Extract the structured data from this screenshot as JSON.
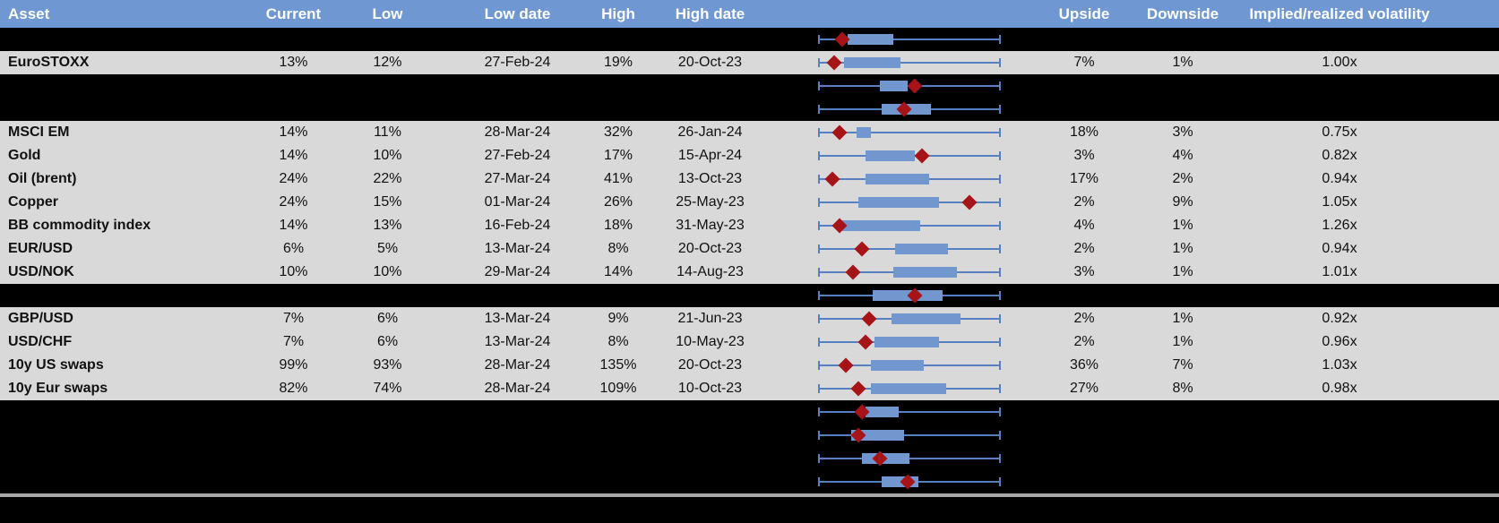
{
  "colors": {
    "header_bg": "#6f98d2",
    "header_text": "#ffffff",
    "row_gray": "#d9d9d9",
    "row_black": "#000000",
    "text_color": "#111111",
    "whisker_blue": "#5580c4",
    "box_blue": "#7297ce",
    "diamond_red": "#a61418",
    "divider_gray": "#a8a8a8"
  },
  "table": {
    "columns": {
      "asset": "Asset",
      "current": "Current",
      "low": "Low",
      "low_date": "Low date",
      "high": "High",
      "high_date": "High date",
      "chart": "",
      "upside": "Upside",
      "downside": "Downside",
      "vol": "Implied/realized volatility"
    },
    "rows": [
      {
        "type": "chart-only",
        "box": {
          "q1": 16,
          "med": 13,
          "q3": 41
        }
      },
      {
        "type": "data",
        "asset": "EuroSTOXX",
        "current": "13%",
        "low": "12%",
        "low_date": "27-Feb-24",
        "high": "19%",
        "high_date": "20-Oct-23",
        "upside": "7%",
        "downside": "1%",
        "vol": "1.00x",
        "box": {
          "q1": 14,
          "med": 9,
          "q3": 45
        }
      },
      {
        "type": "chart-only",
        "box": {
          "q1": 34,
          "med": 53,
          "q3": 49
        }
      },
      {
        "type": "chart-only",
        "box": {
          "q1": 35,
          "med": 47,
          "q3": 62
        }
      },
      {
        "type": "data",
        "asset": "MSCI EM",
        "current": "14%",
        "low": "11%",
        "low_date": "28-Mar-24",
        "high": "32%",
        "high_date": "26-Jan-24",
        "upside": "18%",
        "downside": "3%",
        "vol": "0.75x",
        "box": {
          "q1": 21,
          "med": 12,
          "q3": 29
        }
      },
      {
        "type": "data",
        "asset": "Gold",
        "current": "14%",
        "low": "10%",
        "low_date": "27-Feb-24",
        "high": "17%",
        "high_date": "15-Apr-24",
        "upside": "3%",
        "downside": "4%",
        "vol": "0.82x",
        "box": {
          "q1": 26,
          "med": 57,
          "q3": 53
        }
      },
      {
        "type": "data",
        "asset": "Oil (brent)",
        "current": "24%",
        "low": "22%",
        "low_date": "27-Mar-24",
        "high": "41%",
        "high_date": "13-Oct-23",
        "upside": "17%",
        "downside": "2%",
        "vol": "0.94x",
        "box": {
          "q1": 26,
          "med": 8,
          "q3": 61
        }
      },
      {
        "type": "data",
        "asset": "Copper",
        "current": "24%",
        "low": "15%",
        "low_date": "01-Mar-24",
        "high": "26%",
        "high_date": "25-May-23",
        "upside": "2%",
        "downside": "9%",
        "vol": "1.05x",
        "box": {
          "q1": 22,
          "med": 83,
          "q3": 66
        }
      },
      {
        "type": "data",
        "asset": "BB commodity index",
        "current": "14%",
        "low": "13%",
        "low_date": "16-Feb-24",
        "high": "18%",
        "high_date": "31-May-23",
        "upside": "4%",
        "downside": "1%",
        "vol": "1.26x",
        "box": {
          "q1": 12,
          "med": 12,
          "q3": 56
        }
      },
      {
        "type": "data",
        "asset": "EUR/USD",
        "current": "6%",
        "low": "5%",
        "low_date": "13-Mar-24",
        "high": "8%",
        "high_date": "20-Oct-23",
        "upside": "2%",
        "downside": "1%",
        "vol": "0.94x",
        "box": {
          "q1": 42,
          "med": 24,
          "q3": 71
        }
      },
      {
        "type": "data",
        "asset": "USD/NOK",
        "current": "10%",
        "low": "10%",
        "low_date": "29-Mar-24",
        "high": "14%",
        "high_date": "14-Aug-23",
        "upside": "3%",
        "downside": "1%",
        "vol": "1.01x",
        "box": {
          "q1": 41,
          "med": 19,
          "q3": 76
        }
      },
      {
        "type": "chart-only",
        "box": {
          "q1": 30,
          "med": 53,
          "q3": 68
        }
      },
      {
        "type": "data",
        "asset": "GBP/USD",
        "current": "7%",
        "low": "6%",
        "low_date": "13-Mar-24",
        "high": "9%",
        "high_date": "21-Jun-23",
        "upside": "2%",
        "downside": "1%",
        "vol": "0.92x",
        "box": {
          "q1": 40,
          "med": 28,
          "q3": 78
        }
      },
      {
        "type": "data",
        "asset": "USD/CHF",
        "current": "7%",
        "low": "6%",
        "low_date": "13-Mar-24",
        "high": "8%",
        "high_date": "10-May-23",
        "upside": "2%",
        "downside": "1%",
        "vol": "0.96x",
        "box": {
          "q1": 31,
          "med": 26,
          "q3": 66
        }
      },
      {
        "type": "data",
        "asset": "10y US swaps",
        "current": "99%",
        "low": "93%",
        "low_date": "28-Mar-24",
        "high": "135%",
        "high_date": "20-Oct-23",
        "upside": "36%",
        "downside": "7%",
        "vol": "1.03x",
        "box": {
          "q1": 29,
          "med": 15,
          "q3": 58
        }
      },
      {
        "type": "data",
        "asset": "10y Eur swaps",
        "current": "82%",
        "low": "74%",
        "low_date": "28-Mar-24",
        "high": "109%",
        "high_date": "10-Oct-23",
        "upside": "27%",
        "downside": "8%",
        "vol": "0.98x",
        "box": {
          "q1": 29,
          "med": 22,
          "q3": 70
        }
      },
      {
        "type": "chart-only",
        "box": {
          "q1": 26,
          "med": 24,
          "q3": 44
        }
      },
      {
        "type": "chart-only",
        "box": {
          "q1": 18,
          "med": 22,
          "q3": 47
        }
      },
      {
        "type": "chart-only",
        "box": {
          "q1": 24,
          "med": 34,
          "q3": 50
        }
      },
      {
        "type": "chart-only",
        "box": {
          "q1": 35,
          "med": 49,
          "q3": 55
        }
      }
    ]
  }
}
